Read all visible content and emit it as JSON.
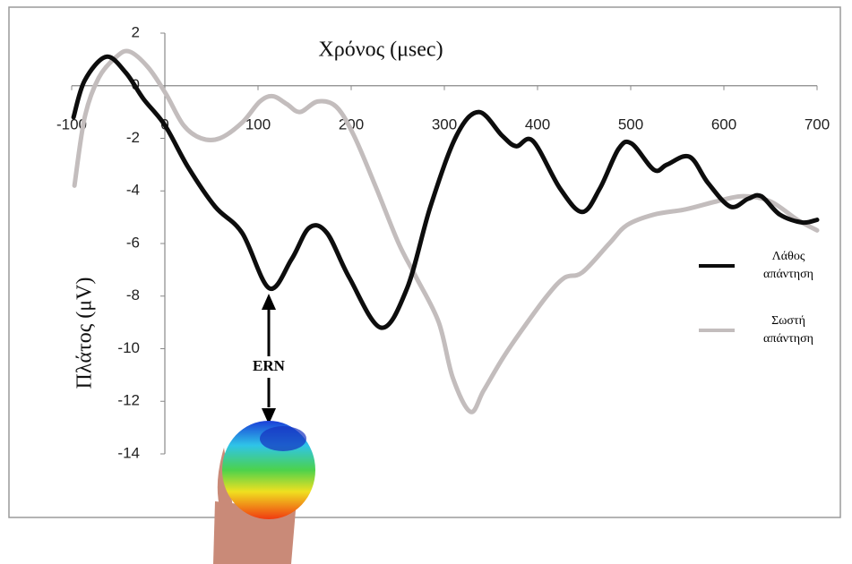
{
  "chart_data": {
    "type": "line",
    "title": "Χρόνος (μsec)",
    "y_label": "Πλάτος (μV)",
    "annotation": "ERN",
    "xlim": [
      -100,
      700
    ],
    "xticks": [
      -100,
      0,
      100,
      200,
      300,
      400,
      500,
      600,
      700
    ],
    "ylim": [
      -14,
      2
    ],
    "yticks": [
      2,
      0,
      -2,
      -4,
      -6,
      -8,
      -10,
      -12,
      -14
    ],
    "series": [
      {
        "name": "Λάθος απάντηση",
        "color": "#0d0d0d",
        "x": [
          -98,
          -86,
          -63,
          -42,
          -23,
          0,
          25,
          54,
          83,
          112,
          136,
          155,
          174,
          198,
          232,
          260,
          285,
          313,
          337,
          362,
          377,
          395,
          424,
          448,
          467,
          487,
          501,
          525,
          539,
          563,
          583,
          607,
          626,
          640,
          660,
          684,
          700
        ],
        "values": [
          -1.2,
          0.2,
          1.1,
          0.5,
          -0.5,
          -1.5,
          -3.1,
          -4.6,
          -5.6,
          -7.7,
          -6.6,
          -5.4,
          -5.6,
          -7.3,
          -9.2,
          -7.7,
          -4.6,
          -1.9,
          -1.0,
          -1.9,
          -2.3,
          -2.1,
          -3.9,
          -4.8,
          -3.9,
          -2.4,
          -2.2,
          -3.2,
          -3.0,
          -2.7,
          -3.7,
          -4.6,
          -4.3,
          -4.2,
          -4.9,
          -5.2,
          -5.1
        ]
      },
      {
        "name": "Σωστή απάντηση",
        "color": "#c3bdbd",
        "x": [
          -97,
          -86,
          -71,
          -52,
          -38,
          -18,
          1,
          20,
          39,
          59,
          83,
          102,
          116,
          131,
          145,
          164,
          184,
          203,
          227,
          251,
          270,
          294,
          309,
          328,
          342,
          362,
          381,
          410,
          429,
          448,
          477,
          496,
          525,
          559,
          592,
          621,
          650,
          679,
          700
        ],
        "values": [
          -3.8,
          -1.2,
          0.3,
          1.1,
          1.3,
          0.7,
          -0.3,
          -1.5,
          -2.0,
          -2.0,
          -1.4,
          -0.6,
          -0.4,
          -0.7,
          -1.0,
          -0.6,
          -0.8,
          -1.9,
          -3.9,
          -6.0,
          -7.3,
          -9.0,
          -11.1,
          -12.4,
          -11.6,
          -10.4,
          -9.4,
          -8.0,
          -7.3,
          -7.1,
          -6.0,
          -5.3,
          -4.9,
          -4.7,
          -4.4,
          -4.2,
          -4.4,
          -5.1,
          -5.5
        ]
      }
    ]
  }
}
